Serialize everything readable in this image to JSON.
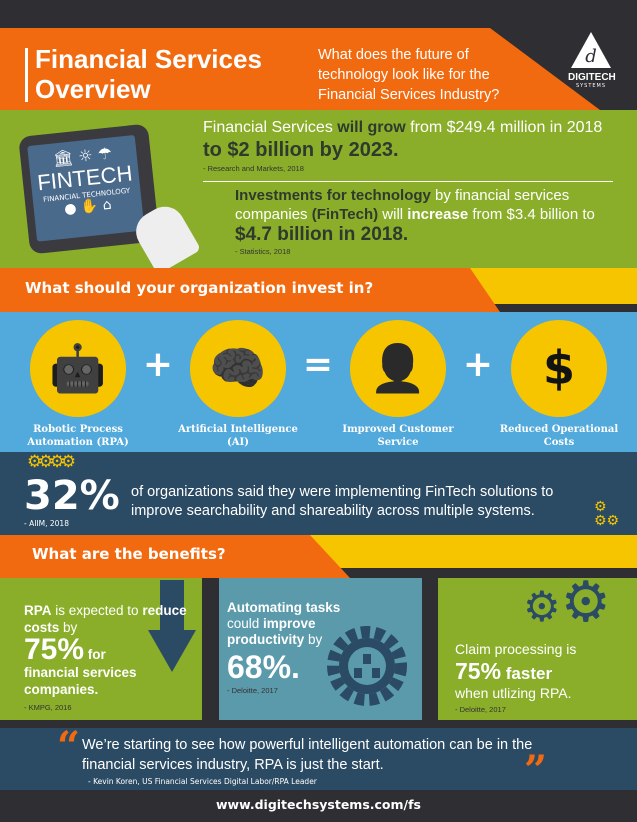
{
  "header": {
    "title_line1": "Financial Services",
    "title_line2": "Overview",
    "question": "What does the future of technology look like for the Financial Services Industry?",
    "logo_text": "DIGITECH",
    "logo_subtext": "SYSTEMS"
  },
  "stats": {
    "tablet_title": "FINTECH",
    "tablet_subtitle": "FINANCIAL TECHNOLOGY",
    "stat1": {
      "part1": "Financial Services ",
      "part2": "will grow",
      "part3": " from $249.4 million in 2018 ",
      "part4": "to $2 billion by 2023.",
      "source": "- Research and Markets, 2018"
    },
    "stat2": {
      "part1": "Investments for technology",
      "part2": " by financial services companies ",
      "part3": "(FinTech)",
      "part4": " will ",
      "part5": "increase",
      "part6": " from $3.4 billion to ",
      "part7": "$4.7 billion in 2018.",
      "source": "- Statistics, 2018"
    }
  },
  "invest": {
    "heading": "What should your organization invest in?",
    "items": [
      {
        "icon": "robot-icon",
        "label": "Robotic Process Automation (RPA)"
      },
      {
        "icon": "brain-icon",
        "label": "Artificial Intelligence (AI)"
      },
      {
        "icon": "customer-service-agent-icon",
        "label": "Improved Customer Service"
      },
      {
        "icon": "dollar-down-icon",
        "label": "Reduced Operational Costs"
      }
    ],
    "operators": [
      "+",
      "=",
      "+"
    ]
  },
  "highlight": {
    "percent": "32%",
    "text": "of organizations said they were implementing FinTech solutions to improve searchability and shareability across multiple systems.",
    "source": "- AIIM, 2018"
  },
  "benefits": {
    "heading": "What are the benefits?",
    "panel1": {
      "b1": "RPA",
      "t1": " is expected to ",
      "b2": "reduce costs",
      "t2": " by",
      "big": "75%",
      "t3": " for",
      "b3": "financial services companies.",
      "source": "- KMPG, 2016"
    },
    "panel2": {
      "b1": "Automating tasks",
      "t1": "could ",
      "b2": "improve productivity",
      "t2": " by",
      "big": "68%.",
      "source": "- Deloitte, 2017"
    },
    "panel3": {
      "t1": "Claim processing is",
      "big": "75%",
      "b1": " faster",
      "t2": "when utlizing RPA.",
      "source": "- Deloitte, 2017"
    }
  },
  "quote": {
    "open": "“",
    "text": "We’re starting to see how powerful intelligent automation can be in the financial services industry, RPA is just the start.",
    "close": "”",
    "attribution": "- Kevin Koren, US Financial Services Digital Labor/RPA Leader"
  },
  "footer": {
    "url": "www.digitechsystems.com/fs"
  },
  "colors": {
    "orange": "#f26a10",
    "green": "#8aae2a",
    "blue": "#52a9dc",
    "yellow": "#f6c500",
    "navy": "#2b4b64",
    "dark": "#2e2e33",
    "teal": "#5b9aab"
  }
}
